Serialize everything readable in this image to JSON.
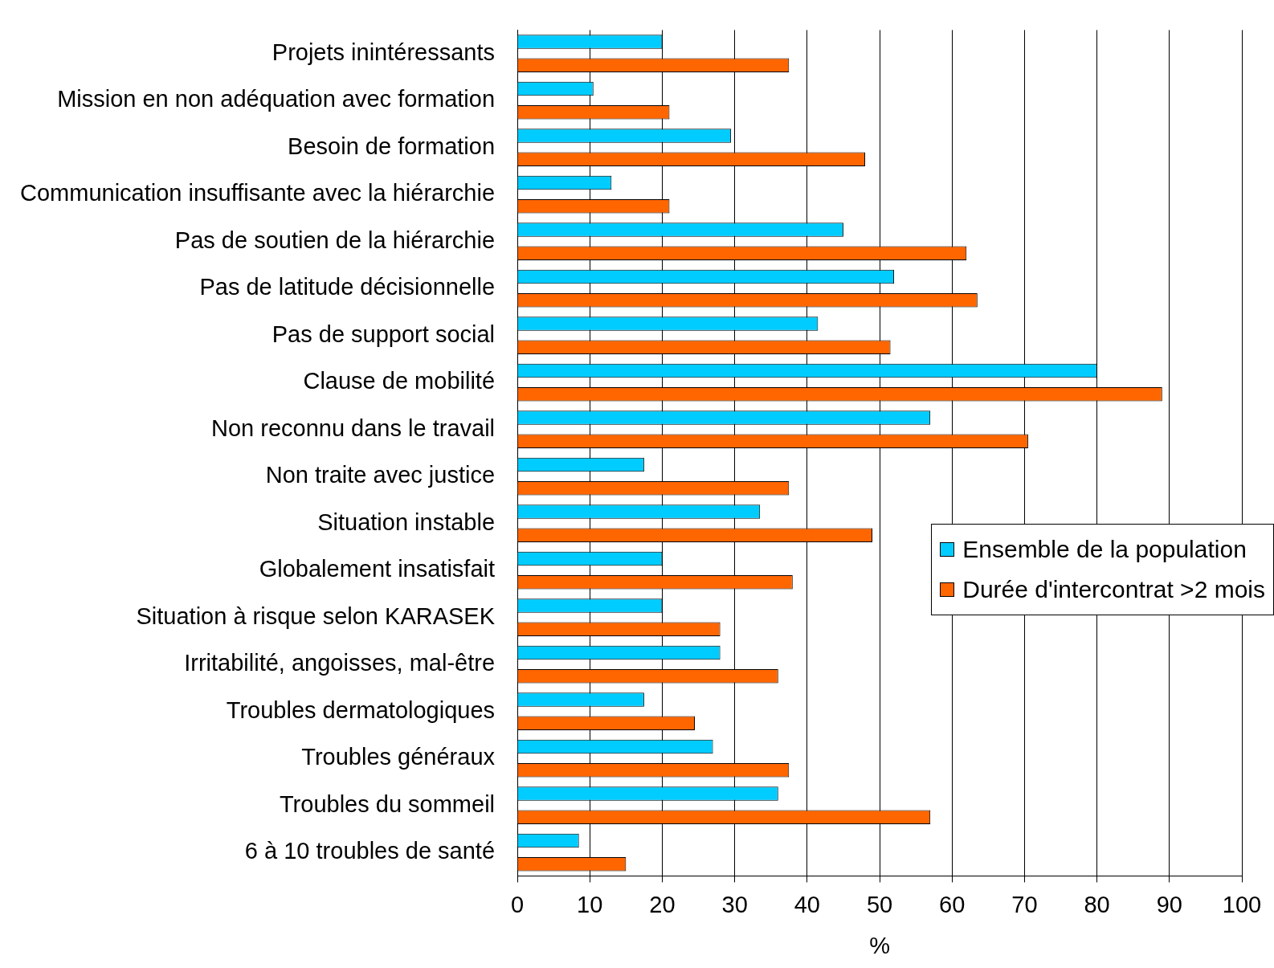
{
  "chart_data": {
    "type": "bar",
    "orientation": "horizontal",
    "xlabel": "%",
    "categories": [
      "Projets inintéressants",
      "Mission en non adéquation avec formation",
      "Besoin de formation",
      "Communication insuffisante avec la hiérarchie",
      "Pas de soutien de la hiérarchie",
      "Pas de latitude décisionnelle",
      "Pas de support social",
      "Clause de mobilité",
      "Non reconnu dans le travail",
      "Non traite avec justice",
      "Situation instable",
      "Globalement insatisfait",
      "Situation à risque selon KARASEK",
      "Irritabilité, angoisses, mal-être",
      "Troubles dermatologiques",
      "Troubles généraux",
      "Troubles du sommeil",
      "6 à 10 troubles de santé"
    ],
    "series": [
      {
        "name": "Ensemble de la population",
        "color": "#00ccff",
        "values": [
          20,
          10.5,
          29.5,
          13,
          45,
          52,
          41.5,
          80,
          57,
          17.5,
          33.5,
          20,
          20,
          28,
          17.5,
          27,
          36,
          8.5
        ]
      },
      {
        "name": "Durée d'intercontrat >2 mois",
        "color": "#ff6600",
        "values": [
          37.5,
          21,
          48,
          21,
          62,
          63.5,
          51.5,
          89,
          70.5,
          37.5,
          49,
          38,
          28,
          36,
          24.5,
          37.5,
          57,
          15
        ]
      }
    ],
    "xlim": [
      0,
      100
    ],
    "xticks": [
      0,
      10,
      20,
      30,
      40,
      50,
      60,
      70,
      80,
      90,
      100
    ],
    "grid": "x",
    "legend": "right"
  }
}
